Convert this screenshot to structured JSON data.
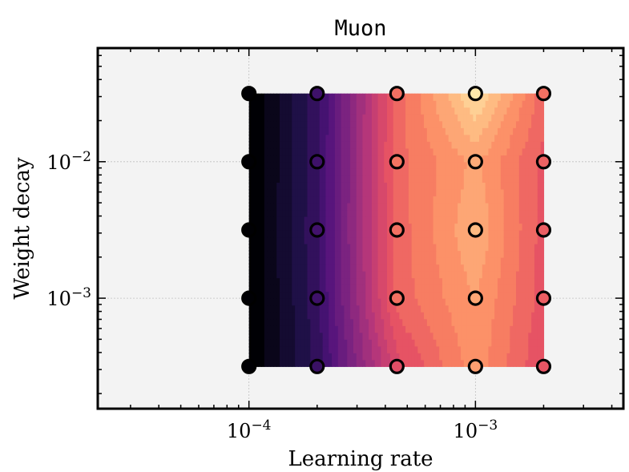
{
  "chart_data": {
    "type": "heatmap",
    "title": "Muon",
    "xlabel": "Learning rate",
    "ylabel": "Weight decay",
    "x_scale": "log",
    "y_scale": "log",
    "xlim": [
      2.15e-05,
      0.0045
    ],
    "ylim": [
      0.000155,
      0.068
    ],
    "grid": true,
    "colormap": "magma",
    "x_ticks": [
      {
        "value": 0.0001,
        "base": "10",
        "exp": "−4"
      },
      {
        "value": 0.001,
        "base": "10",
        "exp": "−3"
      }
    ],
    "y_ticks": [
      {
        "value": 0.001,
        "base": "10",
        "exp": "−3"
      },
      {
        "value": 0.01,
        "base": "10",
        "exp": "−2"
      }
    ],
    "x": [
      0.0001,
      0.0002,
      0.00045,
      0.001,
      0.002
    ],
    "y": [
      0.000316,
      0.001,
      0.00316,
      0.01,
      0.0316
    ],
    "z": [
      [
        0.0,
        0.2,
        0.62,
        0.8,
        0.64
      ],
      [
        0.0,
        0.21,
        0.7,
        0.82,
        0.66
      ],
      [
        0.0,
        0.22,
        0.7,
        0.86,
        0.66
      ],
      [
        0.0,
        0.21,
        0.71,
        0.83,
        0.67
      ],
      [
        0.0,
        0.21,
        0.7,
        0.96,
        0.7
      ]
    ]
  },
  "colors": {
    "plot_background": "#f3f3f3",
    "grid": "#c0c0c0",
    "axes": "#000000",
    "marker_edge": "#000000"
  }
}
